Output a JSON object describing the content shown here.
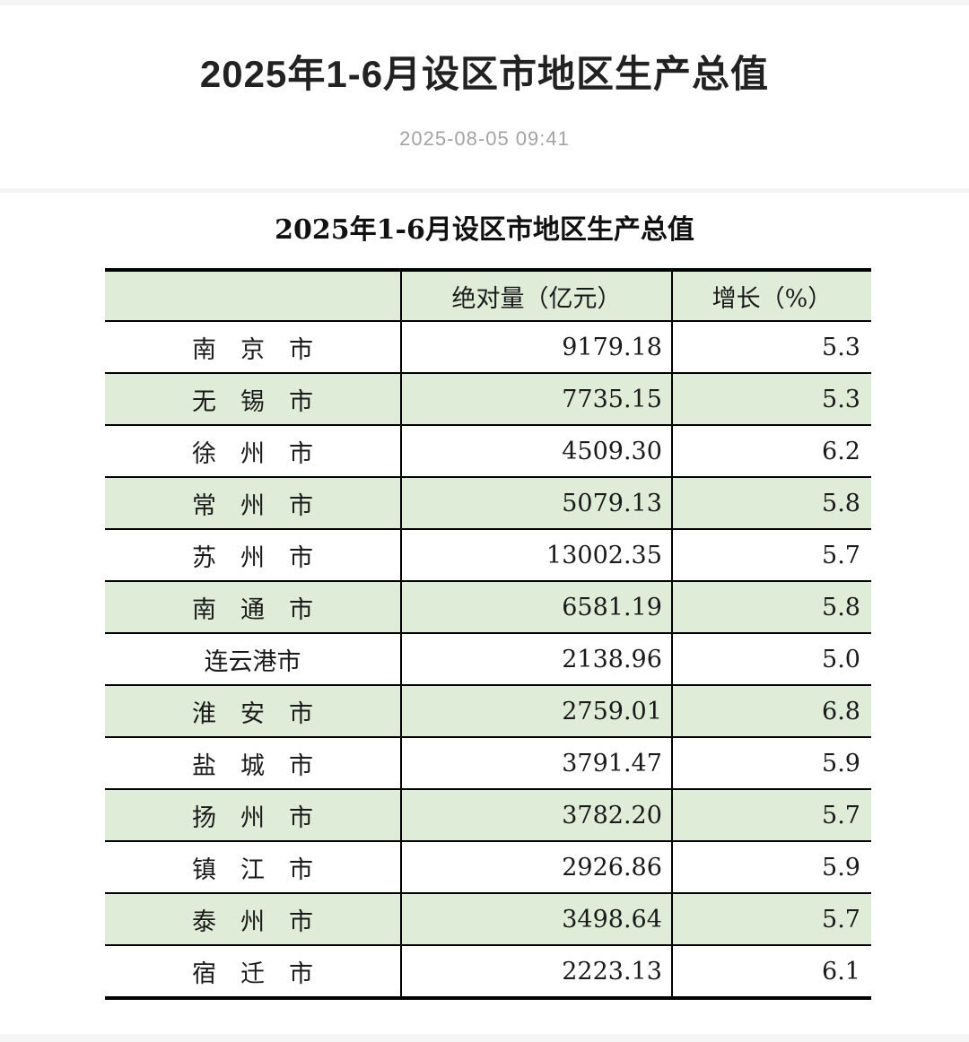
{
  "page": {
    "title": "2025年1-6月设区市地区生产总值",
    "date": "2025-08-05 09:41"
  },
  "table": {
    "title": "2025年1-6月设区市地区生产总值",
    "columns": [
      "",
      "绝对量（亿元）",
      "增长（%）"
    ],
    "rows": [
      {
        "city": "南　京　市",
        "value": "9179.18",
        "growth": "5.3"
      },
      {
        "city": "无　锡　市",
        "value": "7735.15",
        "growth": "5.3"
      },
      {
        "city": "徐　州　市",
        "value": "4509.30",
        "growth": "6.2"
      },
      {
        "city": "常　州　市",
        "value": "5079.13",
        "growth": "5.8"
      },
      {
        "city": "苏　州　市",
        "value": "13002.35",
        "growth": "5.7"
      },
      {
        "city": "南　通　市",
        "value": "6581.19",
        "growth": "5.8"
      },
      {
        "city": "连云港市",
        "value": "2138.96",
        "growth": "5.0"
      },
      {
        "city": "淮　安　市",
        "value": "2759.01",
        "growth": "6.8"
      },
      {
        "city": "盐　城　市",
        "value": "3791.47",
        "growth": "5.9"
      },
      {
        "city": "扬　州　市",
        "value": "3782.20",
        "growth": "5.7"
      },
      {
        "city": "镇　江　市",
        "value": "2926.86",
        "growth": "5.9"
      },
      {
        "city": "泰　州　市",
        "value": "3498.64",
        "growth": "5.7"
      },
      {
        "city": "宿　迁　市",
        "value": "2223.13",
        "growth": "6.1"
      }
    ]
  },
  "colors": {
    "row_green": "#dfecd8",
    "table_border": "#000000",
    "date_gray": "#a3a3a3",
    "divider_gray": "#f2f2f2",
    "page_strip": "#f5f5f5"
  }
}
